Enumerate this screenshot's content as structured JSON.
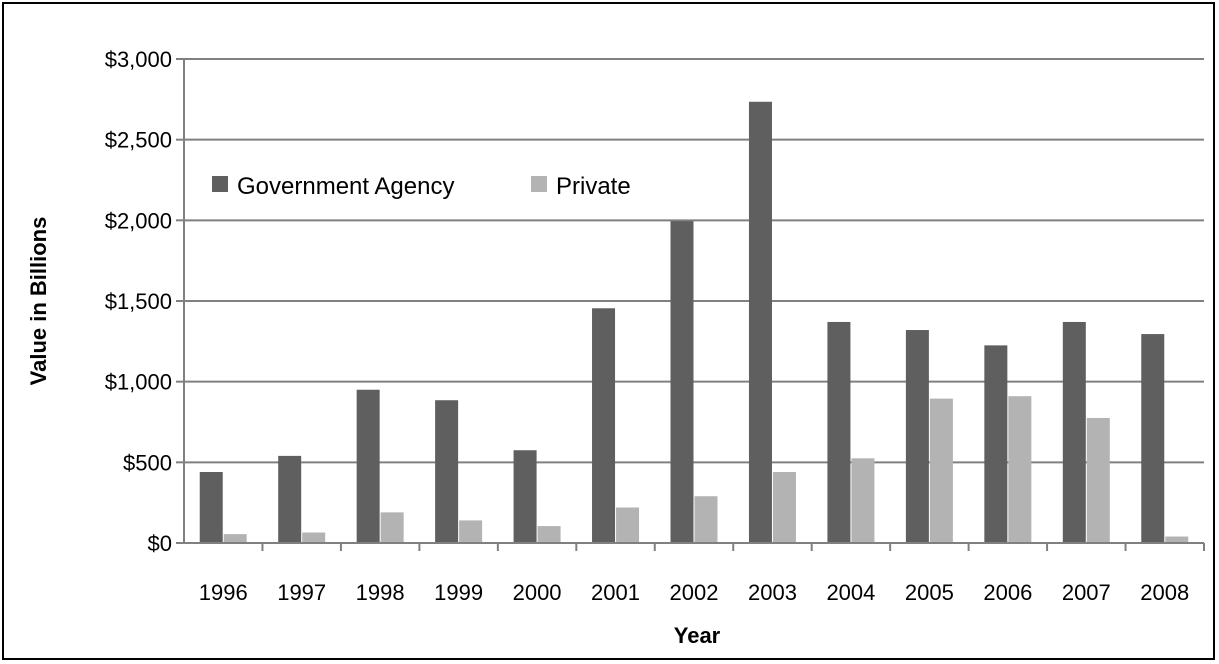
{
  "chart_data": {
    "type": "bar",
    "title": "",
    "xlabel": "Year",
    "ylabel": "Value in Billions",
    "categories": [
      "1996",
      "1997",
      "1998",
      "1999",
      "2000",
      "2001",
      "2002",
      "2003",
      "2004",
      "2005",
      "2006",
      "2007",
      "2008"
    ],
    "series": [
      {
        "name": "Government Agency",
        "color": "#5f5f5f",
        "values": [
          440,
          540,
          950,
          885,
          575,
          1455,
          1995,
          2735,
          1370,
          1320,
          1225,
          1370,
          1295
        ]
      },
      {
        "name": "Private",
        "color": "#b3b3b3",
        "values": [
          55,
          65,
          190,
          140,
          105,
          220,
          290,
          440,
          525,
          895,
          910,
          775,
          40
        ]
      }
    ],
    "ylim": [
      0,
      3000
    ],
    "yticks": [
      0,
      500,
      1000,
      1500,
      2000,
      2500,
      3000
    ],
    "ytick_labels": [
      "$0",
      "$500",
      "$1,000",
      "$1,500",
      "$2,000",
      "$2,500",
      "$3,000"
    ],
    "grid": true,
    "legend_position": "top-left"
  }
}
